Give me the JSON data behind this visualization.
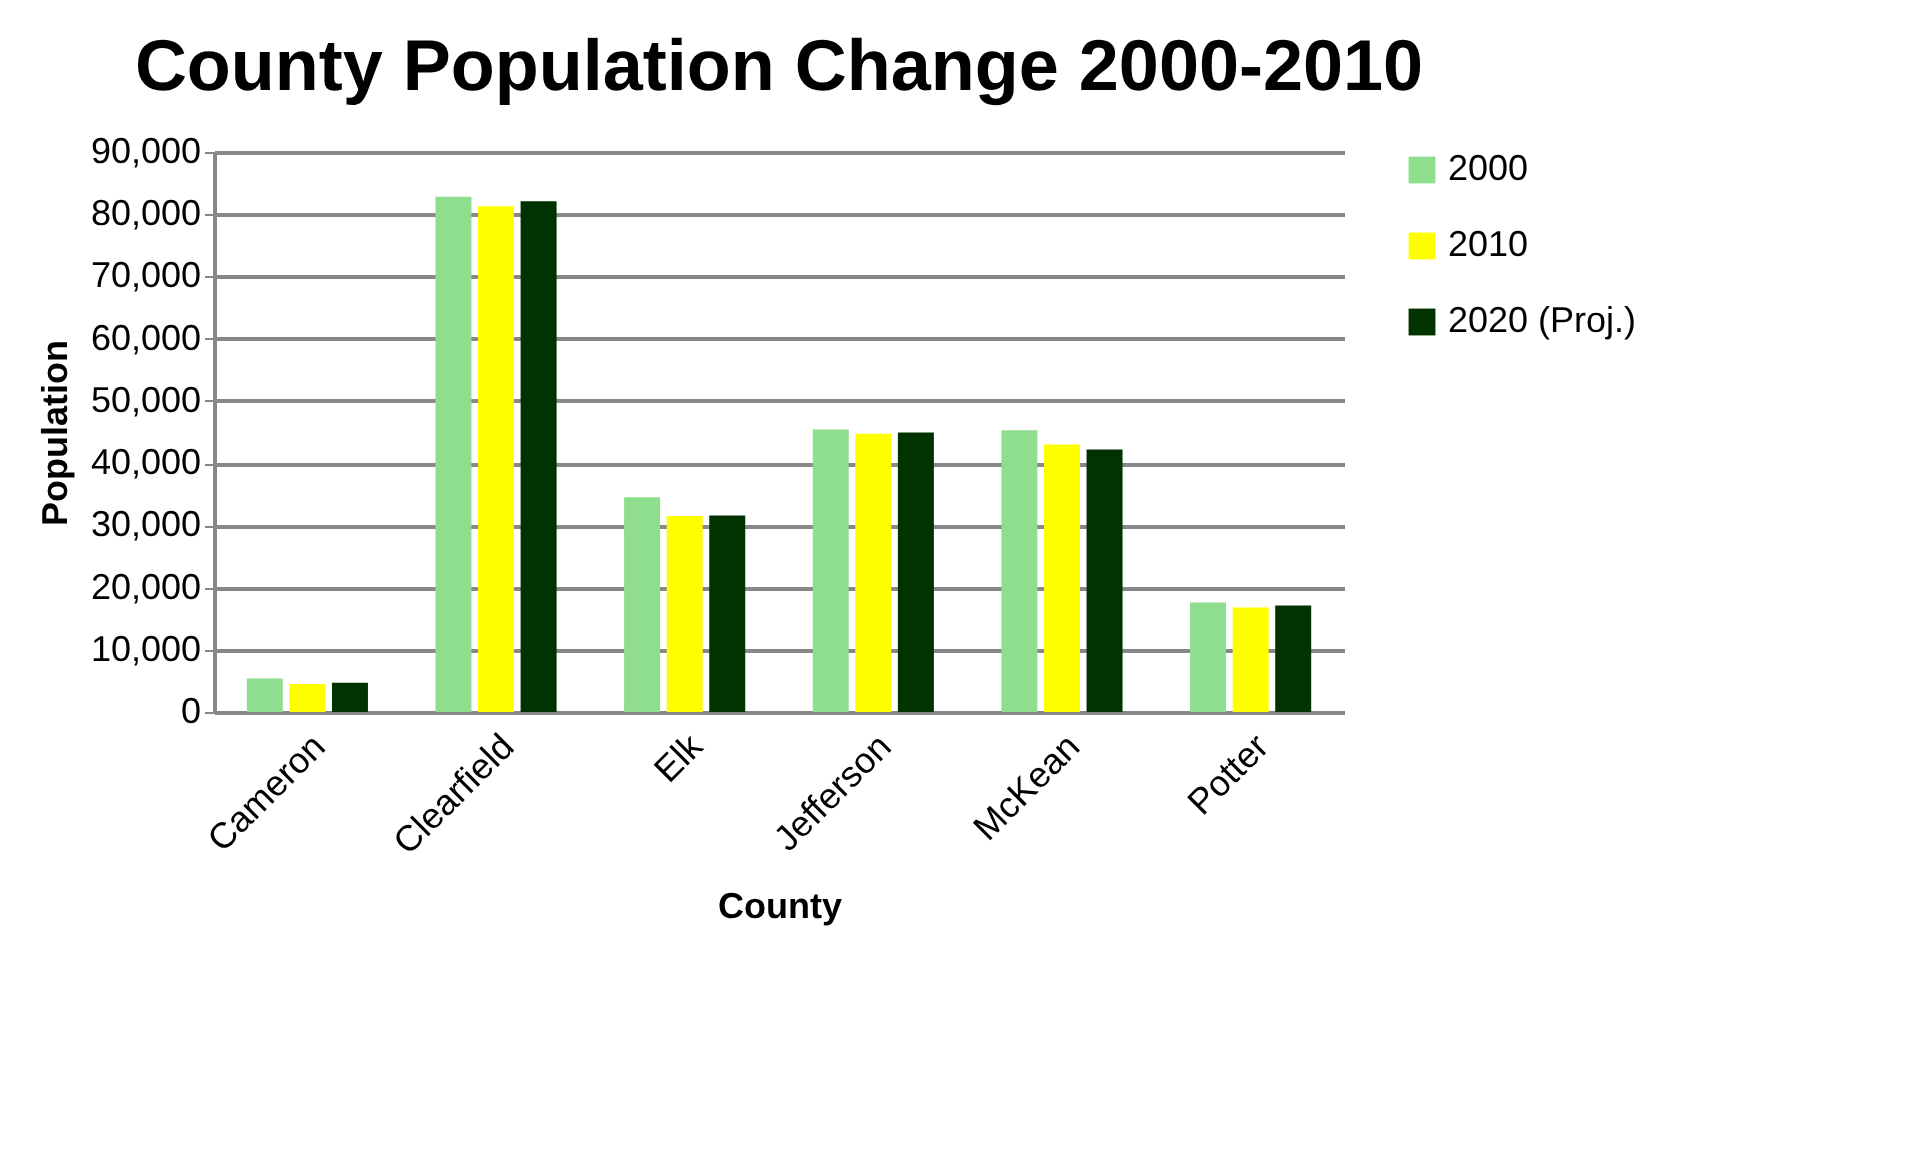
{
  "chart_data": {
    "type": "bar",
    "title": "County Population Change 2000-2010",
    "xlabel": "County",
    "ylabel": "Population",
    "categories": [
      "Cameron",
      "Clearfield",
      "Elk",
      "Jefferson",
      "McKean",
      "Potter"
    ],
    "series": [
      {
        "name": "2000",
        "color": "#8ede8e",
        "values": [
          5400,
          82800,
          34500,
          45400,
          45300,
          17600
        ]
      },
      {
        "name": "2010",
        "color": "#ffff00",
        "values": [
          4500,
          81300,
          31500,
          44700,
          43000,
          16800
        ]
      },
      {
        "name": "2020 (Proj.)",
        "color": "#003300",
        "values": [
          4700,
          82100,
          31600,
          44900,
          42200,
          17100
        ]
      }
    ],
    "ylim": [
      0,
      90000
    ],
    "yticks": [
      0,
      {
        "value": 10000,
        "label": "10,000"
      },
      {
        "value": 20000,
        "label": "20,000"
      },
      {
        "value": 30000,
        "label": "30,000"
      },
      {
        "value": 40000,
        "label": "40,000"
      },
      {
        "value": 50000,
        "label": "50,000"
      },
      {
        "value": 60000,
        "label": "60,000"
      },
      {
        "value": 70000,
        "label": "70,000"
      },
      {
        "value": 80000,
        "label": "80,000"
      },
      {
        "value": 90000,
        "label": "90,000"
      }
    ],
    "grid": "y",
    "legend": "right"
  }
}
